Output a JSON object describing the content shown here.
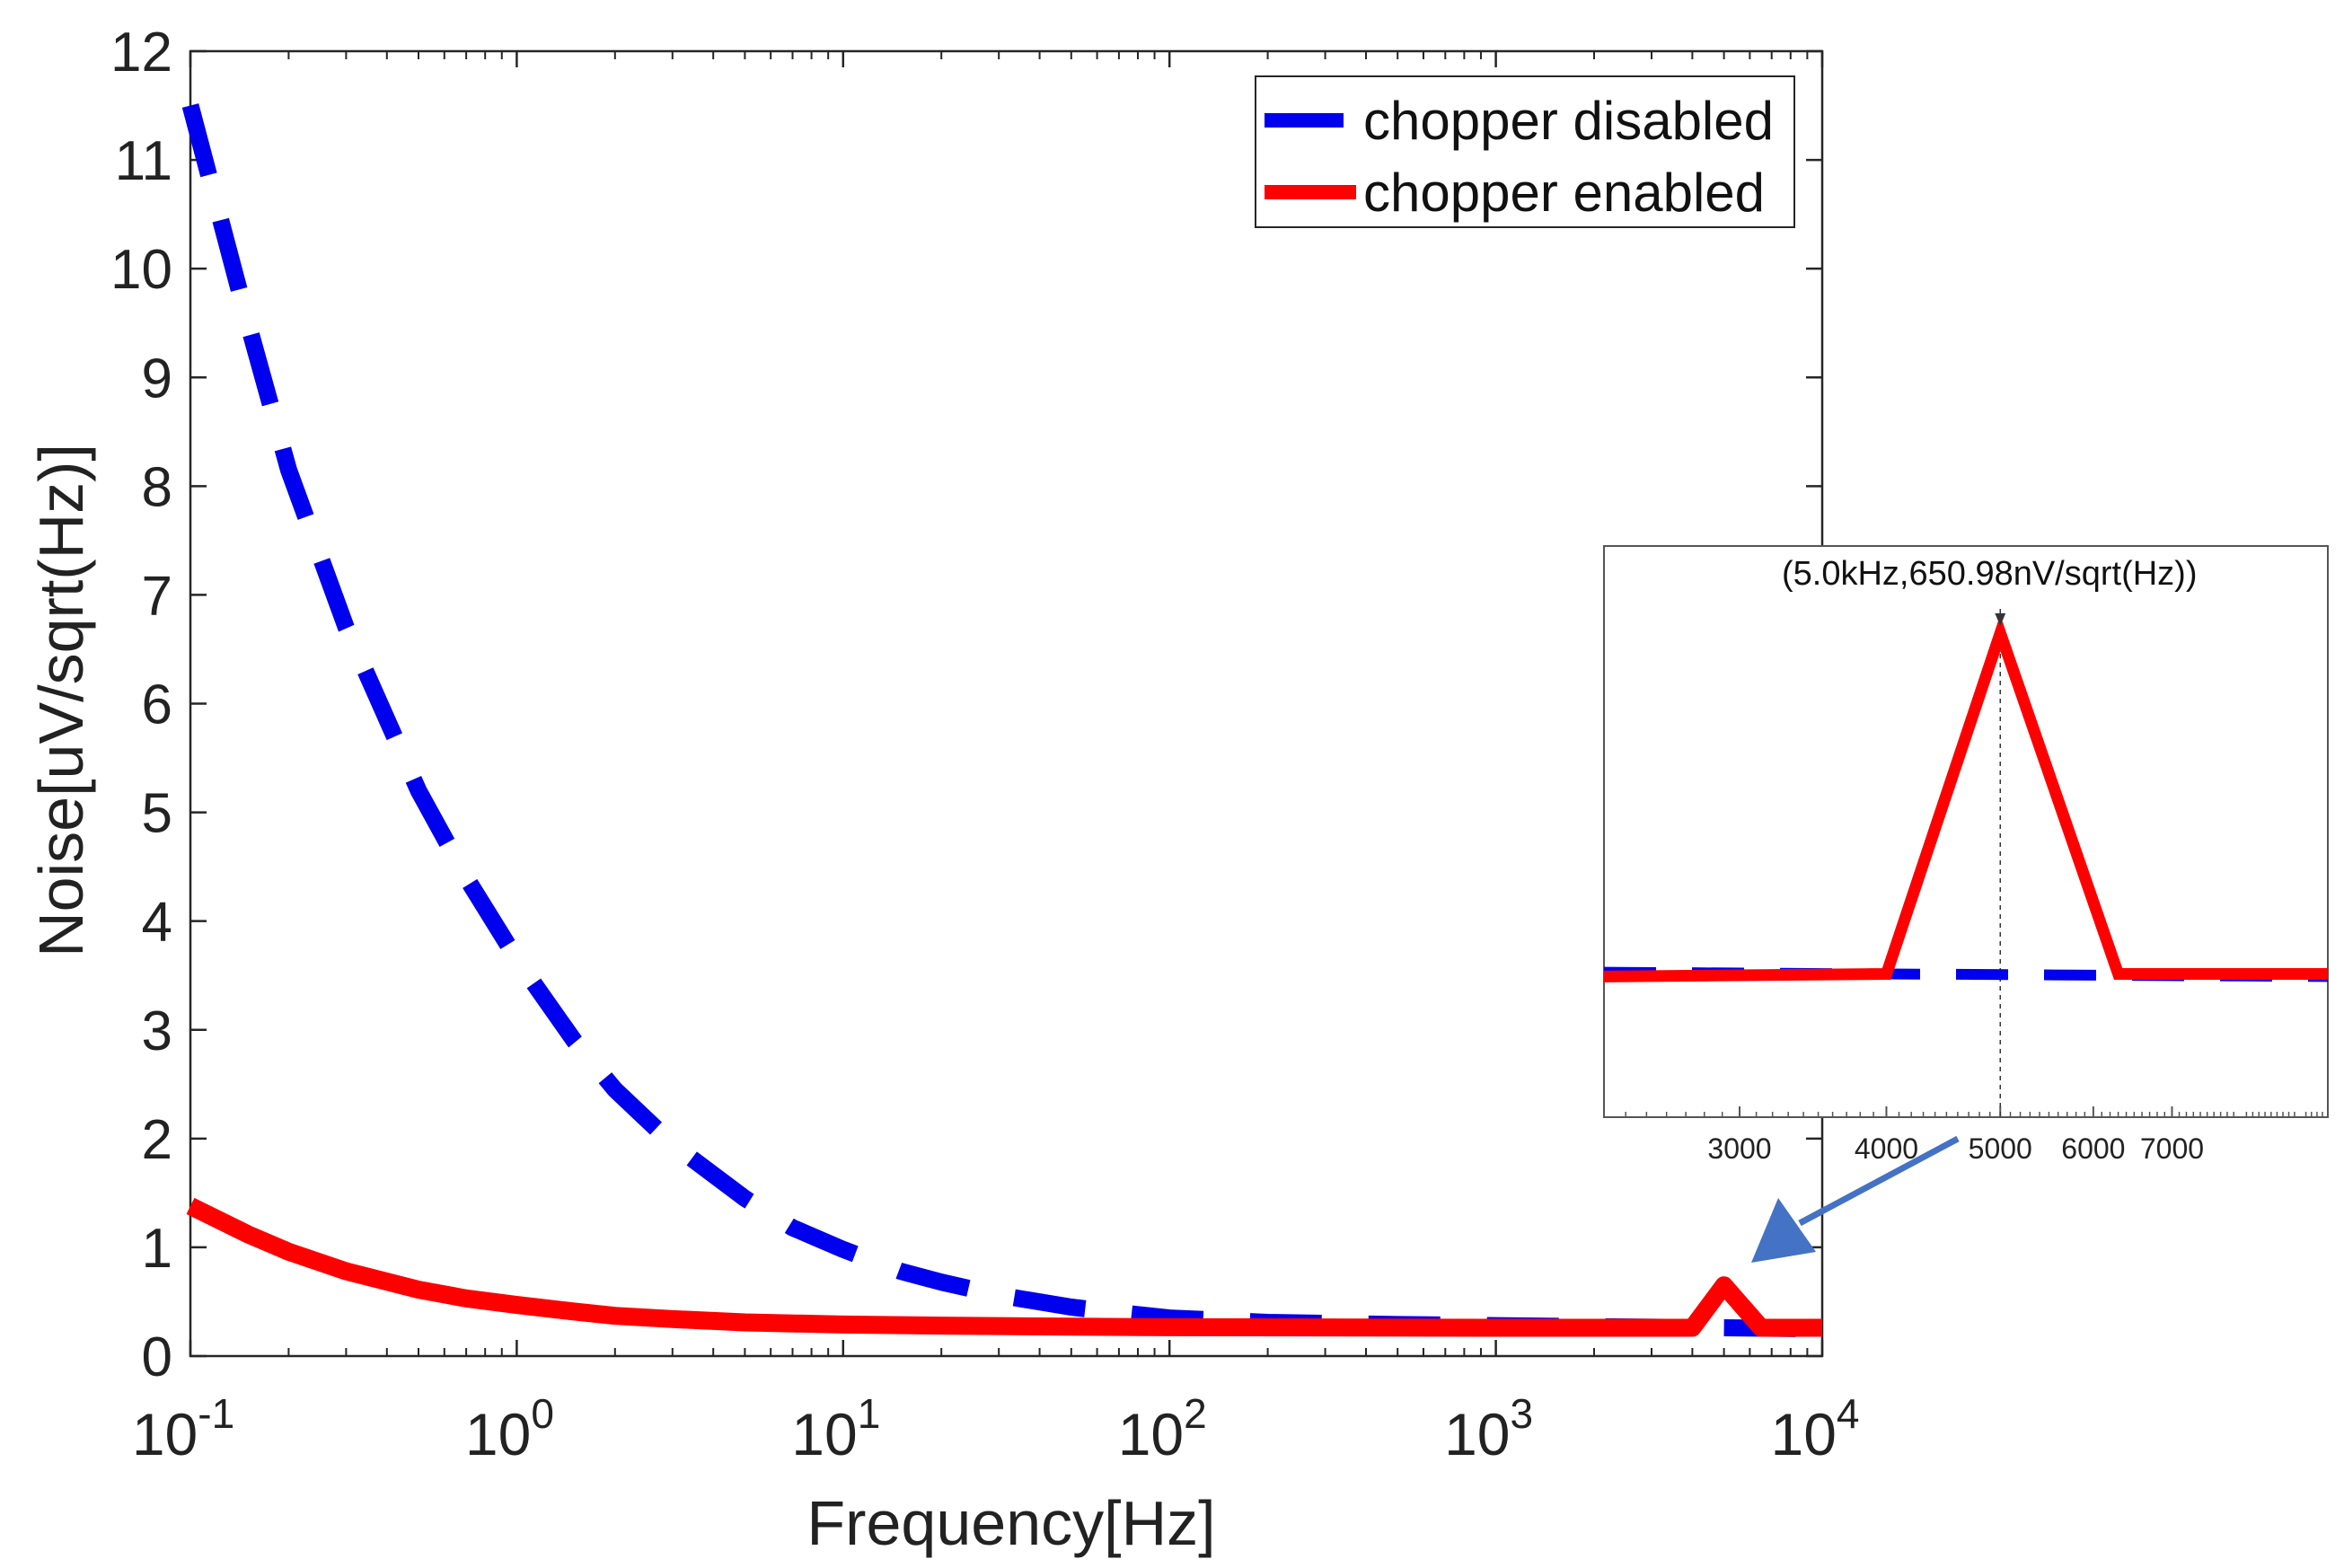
{
  "chart_data": [
    {
      "type": "line",
      "xlabel": "Frequency[Hz]",
      "ylabel": "Noise[uV/sqrt(Hz)]",
      "xscale": "log",
      "xlim": [
        0.1,
        10000
      ],
      "ylim": [
        0,
        12
      ],
      "xticks": [
        {
          "value": 0.1,
          "base": "10",
          "exp": "-1"
        },
        {
          "value": 1,
          "base": "10",
          "exp": "0"
        },
        {
          "value": 10,
          "base": "10",
          "exp": "1"
        },
        {
          "value": 100,
          "base": "10",
          "exp": "2"
        },
        {
          "value": 1000,
          "base": "10",
          "exp": "3"
        },
        {
          "value": 10000,
          "base": "10",
          "exp": "4"
        }
      ],
      "yticks": [
        {
          "value": 0,
          "label": "0"
        },
        {
          "value": 1,
          "label": "1"
        },
        {
          "value": 2,
          "label": "2"
        },
        {
          "value": 3,
          "label": "3"
        },
        {
          "value": 4,
          "label": "4"
        },
        {
          "value": 5,
          "label": "5"
        },
        {
          "value": 6,
          "label": "6"
        },
        {
          "value": 7,
          "label": "7"
        },
        {
          "value": 8,
          "label": "8"
        },
        {
          "value": 9,
          "label": "9"
        },
        {
          "value": 10,
          "label": "10"
        },
        {
          "value": 11,
          "label": "11"
        },
        {
          "value": 12,
          "label": "12"
        }
      ],
      "grid": false,
      "legend_position": "top-right",
      "series": [
        {
          "name": "chopper disabled",
          "color": "#0000ee",
          "style": "dashed",
          "points": [
            [
              0.1,
              11.5
            ],
            [
              0.15,
              9.5
            ],
            [
              0.2,
              8.15
            ],
            [
              0.3,
              6.7
            ],
            [
              0.5,
              5.2
            ],
            [
              0.7,
              4.4
            ],
            [
              1,
              3.65
            ],
            [
              1.5,
              2.9
            ],
            [
              2,
              2.45
            ],
            [
              3,
              1.95
            ],
            [
              5,
              1.45
            ],
            [
              7,
              1.18
            ],
            [
              10,
              0.98
            ],
            [
              15,
              0.78
            ],
            [
              20,
              0.68
            ],
            [
              30,
              0.56
            ],
            [
              50,
              0.45
            ],
            [
              70,
              0.4
            ],
            [
              100,
              0.35
            ],
            [
              200,
              0.31
            ],
            [
              500,
              0.29
            ],
            [
              1000,
              0.28
            ],
            [
              2000,
              0.27
            ],
            [
              5000,
              0.26
            ],
            [
              10000,
              0.25
            ]
          ]
        },
        {
          "name": "chopper enabled",
          "color": "#ff0000",
          "style": "solid",
          "points": [
            [
              0.1,
              1.38
            ],
            [
              0.15,
              1.12
            ],
            [
              0.2,
              0.96
            ],
            [
              0.3,
              0.78
            ],
            [
              0.5,
              0.61
            ],
            [
              0.7,
              0.53
            ],
            [
              1,
              0.47
            ],
            [
              1.5,
              0.41
            ],
            [
              2,
              0.37
            ],
            [
              3,
              0.34
            ],
            [
              5,
              0.31
            ],
            [
              10,
              0.29
            ],
            [
              20,
              0.28
            ],
            [
              50,
              0.27
            ],
            [
              100,
              0.265
            ],
            [
              1000,
              0.26
            ],
            [
              4000,
              0.26
            ],
            [
              5000,
              0.651
            ],
            [
              6500,
              0.26
            ],
            [
              10000,
              0.26
            ]
          ]
        }
      ]
    },
    {
      "type": "line",
      "inset": true,
      "xscale": "log",
      "xlim": [
        2300,
        9500
      ],
      "ylim": [
        0.1,
        0.75
      ],
      "xticks": [
        {
          "value": 3000,
          "label": "3000"
        },
        {
          "value": 4000,
          "label": "4000"
        },
        {
          "value": 5000,
          "label": "5000"
        },
        {
          "value": 6000,
          "label": "6000"
        },
        {
          "value": 7000,
          "label": "7000"
        }
      ],
      "annotation": {
        "text": "(5.0kHz,650.98nV/sqrt(Hz))",
        "x": 5000,
        "y": 0.651
      },
      "series": [
        {
          "name": "chopper disabled",
          "color": "#0000ee",
          "style": "dashed",
          "points": [
            [
              2300,
              0.265
            ],
            [
              9500,
              0.26
            ]
          ]
        },
        {
          "name": "chopper enabled",
          "color": "#ff0000",
          "style": "solid",
          "points": [
            [
              2300,
              0.26
            ],
            [
              4000,
              0.263
            ],
            [
              5000,
              0.651
            ],
            [
              6300,
              0.263
            ],
            [
              9500,
              0.263
            ]
          ]
        }
      ]
    }
  ],
  "arrow_color": "#4472c4"
}
